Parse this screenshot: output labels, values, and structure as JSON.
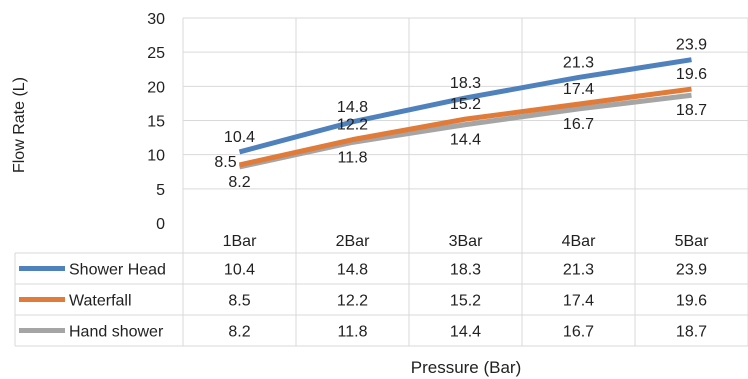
{
  "chart_data": {
    "type": "line",
    "title": "",
    "xlabel": "Pressure (Bar)",
    "ylabel": "Flow Rate (L)",
    "ylim": [
      0,
      30
    ],
    "yticks": [
      0,
      5,
      10,
      15,
      20,
      25,
      30
    ],
    "grid": true,
    "legend_placement": "data-table-left",
    "categories": [
      "1Bar",
      "2Bar",
      "3Bar",
      "4Bar",
      "5Bar"
    ],
    "series": [
      {
        "name": "Shower Head",
        "color": "#4f81bd",
        "values": [
          10.4,
          14.8,
          18.3,
          21.3,
          23.9
        ]
      },
      {
        "name": "Waterfall",
        "color": "#e07b39",
        "values": [
          8.5,
          12.2,
          15.2,
          17.4,
          19.6
        ]
      },
      {
        "name": "Hand shower",
        "color": "#a5a5a5",
        "values": [
          8.2,
          11.8,
          14.4,
          16.7,
          18.7
        ]
      }
    ]
  }
}
